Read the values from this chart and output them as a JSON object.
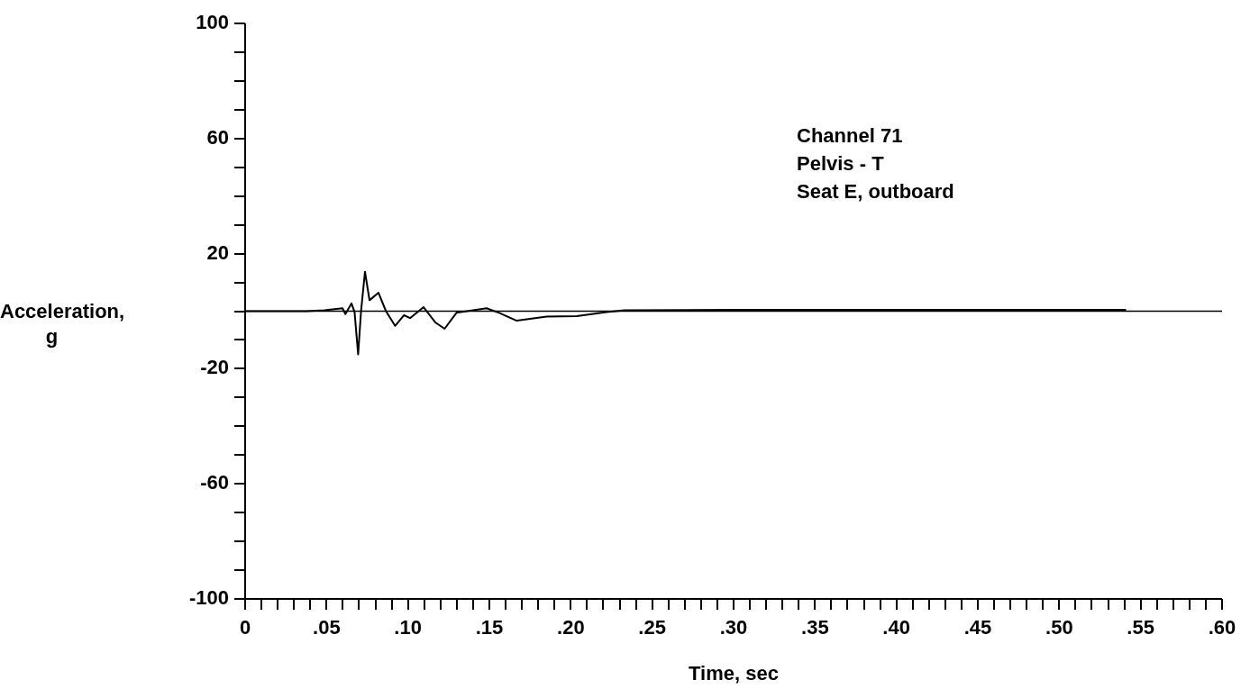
{
  "chart_data": {
    "type": "line",
    "xlabel": "Time, sec",
    "ylabel": "Acceleration, g",
    "annotations": [
      "Channel 71",
      "Pelvis - T",
      "Seat E, outboard"
    ],
    "x": [
      0,
      0.0376,
      0.0487,
      0.0598,
      0.0616,
      0.0653,
      0.0672,
      0.0694,
      0.0712,
      0.0736,
      0.0764,
      0.0819,
      0.0865,
      0.0921,
      0.0976,
      0.1013,
      0.1096,
      0.117,
      0.1225,
      0.1299,
      0.1483,
      0.1557,
      0.1668,
      0.1852,
      0.2037,
      0.222,
      0.233,
      0.3,
      0.4,
      0.5,
      0.541
    ],
    "series": [
      {
        "color": "#000000",
        "values": [
          0,
          0,
          0.3,
          1,
          -1,
          2.7,
          -0.3,
          -15,
          0,
          13.7,
          3.8,
          6.4,
          0,
          -5.1,
          -1.4,
          -2.4,
          1.4,
          -4,
          -6.1,
          -0.5,
          1,
          -0.5,
          -3.3,
          -1.9,
          -1.7,
          -0.3,
          0.3,
          0.5,
          0.5,
          0.5,
          0.5
        ]
      }
    ],
    "xlim": [
      0,
      0.6
    ],
    "xticks": [
      0,
      {
        "value": 0.01,
        "label": null
      },
      {
        "value": 0.02,
        "label": null
      },
      {
        "value": 0.03,
        "label": null
      },
      {
        "value": 0.04,
        "label": null
      },
      {
        "value": 0.05,
        "label": ".05"
      },
      {
        "value": 0.06,
        "label": null
      },
      {
        "value": 0.07,
        "label": null
      },
      {
        "value": 0.08,
        "label": null
      },
      {
        "value": 0.09,
        "label": null
      },
      {
        "value": 0.1,
        "label": ".10"
      },
      {
        "value": 0.11,
        "label": null
      },
      {
        "value": 0.12,
        "label": null
      },
      {
        "value": 0.13,
        "label": null
      },
      {
        "value": 0.14,
        "label": null
      },
      {
        "value": 0.15,
        "label": ".15"
      },
      {
        "value": 0.16,
        "label": null
      },
      {
        "value": 0.17,
        "label": null
      },
      {
        "value": 0.18,
        "label": null
      },
      {
        "value": 0.19,
        "label": null
      },
      {
        "value": 0.2,
        "label": ".20"
      },
      {
        "value": 0.21,
        "label": null
      },
      {
        "value": 0.22,
        "label": null
      },
      {
        "value": 0.23,
        "label": null
      },
      {
        "value": 0.24,
        "label": null
      },
      {
        "value": 0.25,
        "label": ".25"
      },
      {
        "value": 0.26,
        "label": null
      },
      {
        "value": 0.27,
        "label": null
      },
      {
        "value": 0.28,
        "label": null
      },
      {
        "value": 0.29,
        "label": null
      },
      {
        "value": 0.3,
        "label": ".30"
      },
      {
        "value": 0.31,
        "label": null
      },
      {
        "value": 0.32,
        "label": null
      },
      {
        "value": 0.33,
        "label": null
      },
      {
        "value": 0.34,
        "label": null
      },
      {
        "value": 0.35,
        "label": ".35"
      },
      {
        "value": 0.36,
        "label": null
      },
      {
        "value": 0.37,
        "label": null
      },
      {
        "value": 0.38,
        "label": null
      },
      {
        "value": 0.39,
        "label": null
      },
      {
        "value": 0.4,
        "label": ".40"
      },
      {
        "value": 0.41,
        "label": null
      },
      {
        "value": 0.42,
        "label": null
      },
      {
        "value": 0.43,
        "label": null
      },
      {
        "value": 0.44,
        "label": null
      },
      {
        "value": 0.45,
        "label": ".45"
      },
      {
        "value": 0.46,
        "label": null
      },
      {
        "value": 0.47,
        "label": null
      },
      {
        "value": 0.48,
        "label": null
      },
      {
        "value": 0.49,
        "label": null
      },
      {
        "value": 0.5,
        "label": ".50"
      },
      {
        "value": 0.51,
        "label": null
      },
      {
        "value": 0.52,
        "label": null
      },
      {
        "value": 0.53,
        "label": null
      },
      {
        "value": 0.54,
        "label": null
      },
      {
        "value": 0.55,
        "label": ".55"
      },
      {
        "value": 0.56,
        "label": null
      },
      {
        "value": 0.57,
        "label": null
      },
      {
        "value": 0.58,
        "label": null
      },
      {
        "value": 0.59,
        "label": null
      },
      {
        "value": 0.6,
        "label": ".60"
      }
    ],
    "ylim": [
      -100,
      100
    ],
    "yticks": [
      -100,
      {
        "value": -90,
        "label": null
      },
      {
        "value": -80,
        "label": null
      },
      {
        "value": -70,
        "label": null
      },
      -60,
      {
        "value": -50,
        "label": null
      },
      {
        "value": -40,
        "label": null
      },
      {
        "value": -30,
        "label": null
      },
      -20,
      {
        "value": -10,
        "label": null
      },
      {
        "value": 0,
        "label": null
      },
      {
        "value": 10,
        "label": null
      },
      20,
      {
        "value": 30,
        "label": null
      },
      {
        "value": 40,
        "label": null
      },
      {
        "value": 50,
        "label": null
      },
      60,
      {
        "value": 70,
        "label": null
      },
      {
        "value": 80,
        "label": null
      },
      {
        "value": 90,
        "label": null
      },
      100
    ],
    "ref_lines": [
      {
        "axis": "y",
        "value": 0,
        "color": "#000000"
      }
    ],
    "grid": false,
    "legend": false,
    "marker": "none",
    "line_style": "solid"
  }
}
